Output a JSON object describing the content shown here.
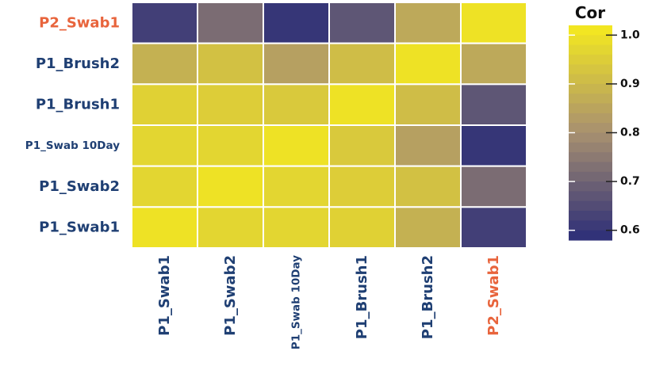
{
  "chart_data": {
    "type": "heatmap",
    "rows": [
      "P2_Swab1",
      "P1_Brush2",
      "P1_Brush1",
      "P1_Swab 10Day",
      "P1_Swab2",
      "P1_Swab1"
    ],
    "columns": [
      "P1_Swab1",
      "P1_Swab2",
      "P1_Swab 10Day",
      "P1_Brush1",
      "P1_Brush2",
      "P2_Swab1"
    ],
    "values": [
      [
        0.62,
        0.72,
        0.6,
        0.67,
        0.86,
        1.0
      ],
      [
        0.88,
        0.92,
        0.84,
        0.91,
        1.0,
        0.86
      ],
      [
        0.96,
        0.95,
        0.94,
        1.0,
        0.91,
        0.67
      ],
      [
        0.97,
        0.97,
        1.0,
        0.94,
        0.84,
        0.6
      ],
      [
        0.97,
        1.0,
        0.97,
        0.95,
        0.92,
        0.72
      ],
      [
        1.0,
        0.97,
        0.97,
        0.96,
        0.88,
        0.62
      ]
    ],
    "label_colors": {
      "P2_Swab1": "#e8643c",
      "P1_Brush2": "#1f3f73",
      "P1_Brush1": "#1f3f73",
      "P1_Swab 10Day": "#1f3f73",
      "P1_Swab2": "#1f3f73",
      "P1_Swab1": "#1f3f73"
    },
    "colorbar": {
      "title": "Cor",
      "min": 0.58,
      "max": 1.02,
      "ticks": [
        "1.0",
        "0.9",
        "0.8",
        "0.7",
        "0.6"
      ],
      "tick_values": [
        1.0,
        0.9,
        0.8,
        0.7,
        0.6
      ]
    },
    "palette": {
      "low": "#2b2d78",
      "mid": "#a89070",
      "high": "#f5ea1e"
    }
  }
}
